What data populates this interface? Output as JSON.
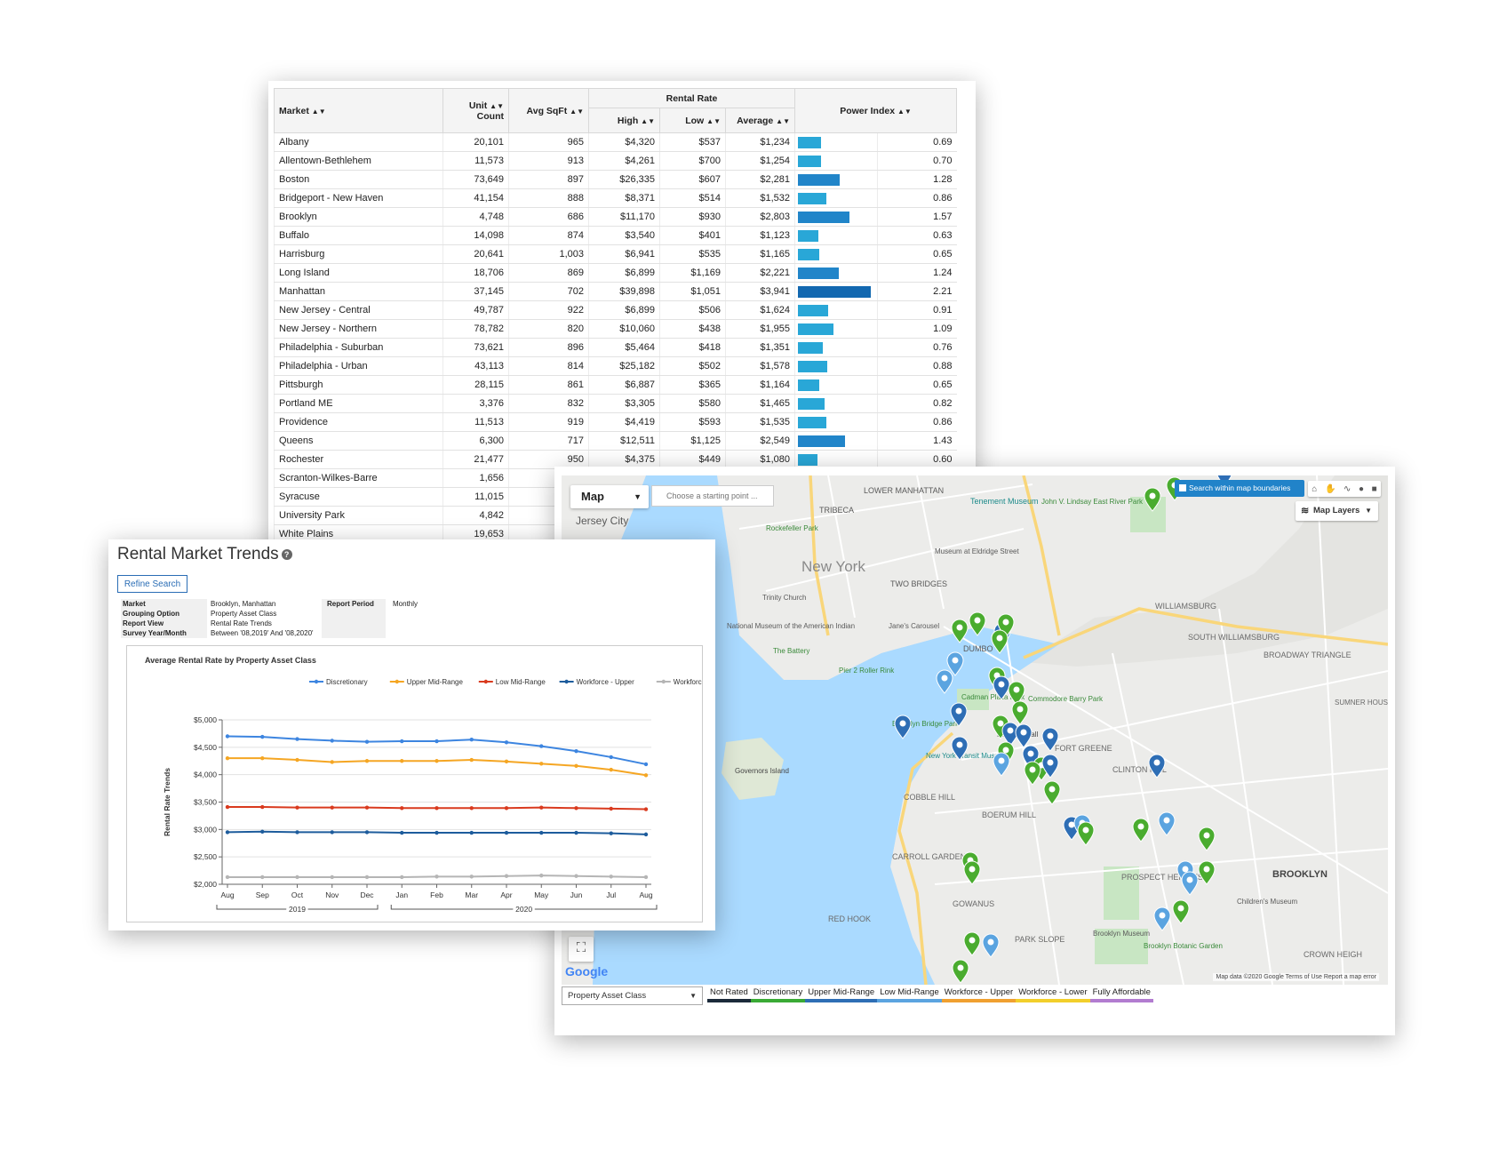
{
  "table": {
    "headers": {
      "market": "Market",
      "unit_count_line1": "Unit",
      "unit_count_line2": "Count",
      "avg_sqft": "Avg SqFt",
      "rental_rate": "Rental Rate",
      "high": "High",
      "low": "Low",
      "average": "Average",
      "power_index": "Power Index"
    },
    "rows": [
      {
        "market": "Albany",
        "unit_count": "20,101",
        "avg_sqft": "965",
        "high": "$4,320",
        "low": "$537",
        "average": "$1,234",
        "power_index": 0.69
      },
      {
        "market": "Allentown-Bethlehem",
        "unit_count": "11,573",
        "avg_sqft": "913",
        "high": "$4,261",
        "low": "$700",
        "average": "$1,254",
        "power_index": 0.7
      },
      {
        "market": "Boston",
        "unit_count": "73,649",
        "avg_sqft": "897",
        "high": "$26,335",
        "low": "$607",
        "average": "$2,281",
        "power_index": 1.28
      },
      {
        "market": "Bridgeport - New Haven",
        "unit_count": "41,154",
        "avg_sqft": "888",
        "high": "$8,371",
        "low": "$514",
        "average": "$1,532",
        "power_index": 0.86
      },
      {
        "market": "Brooklyn",
        "unit_count": "4,748",
        "avg_sqft": "686",
        "high": "$11,170",
        "low": "$930",
        "average": "$2,803",
        "power_index": 1.57
      },
      {
        "market": "Buffalo",
        "unit_count": "14,098",
        "avg_sqft": "874",
        "high": "$3,540",
        "low": "$401",
        "average": "$1,123",
        "power_index": 0.63
      },
      {
        "market": "Harrisburg",
        "unit_count": "20,641",
        "avg_sqft": "1,003",
        "high": "$6,941",
        "low": "$535",
        "average": "$1,165",
        "power_index": 0.65
      },
      {
        "market": "Long Island",
        "unit_count": "18,706",
        "avg_sqft": "869",
        "high": "$6,899",
        "low": "$1,169",
        "average": "$2,221",
        "power_index": 1.24
      },
      {
        "market": "Manhattan",
        "unit_count": "37,145",
        "avg_sqft": "702",
        "high": "$39,898",
        "low": "$1,051",
        "average": "$3,941",
        "power_index": 2.21
      },
      {
        "market": "New Jersey - Central",
        "unit_count": "49,787",
        "avg_sqft": "922",
        "high": "$6,899",
        "low": "$506",
        "average": "$1,624",
        "power_index": 0.91
      },
      {
        "market": "New Jersey - Northern",
        "unit_count": "78,782",
        "avg_sqft": "820",
        "high": "$10,060",
        "low": "$438",
        "average": "$1,955",
        "power_index": 1.09
      },
      {
        "market": "Philadelphia - Suburban",
        "unit_count": "73,621",
        "avg_sqft": "896",
        "high": "$5,464",
        "low": "$418",
        "average": "$1,351",
        "power_index": 0.76
      },
      {
        "market": "Philadelphia - Urban",
        "unit_count": "43,113",
        "avg_sqft": "814",
        "high": "$25,182",
        "low": "$502",
        "average": "$1,578",
        "power_index": 0.88
      },
      {
        "market": "Pittsburgh",
        "unit_count": "28,115",
        "avg_sqft": "861",
        "high": "$6,887",
        "low": "$365",
        "average": "$1,164",
        "power_index": 0.65
      },
      {
        "market": "Portland ME",
        "unit_count": "3,376",
        "avg_sqft": "832",
        "high": "$3,305",
        "low": "$580",
        "average": "$1,465",
        "power_index": 0.82
      },
      {
        "market": "Providence",
        "unit_count": "11,513",
        "avg_sqft": "919",
        "high": "$4,419",
        "low": "$593",
        "average": "$1,535",
        "power_index": 0.86
      },
      {
        "market": "Queens",
        "unit_count": "6,300",
        "avg_sqft": "717",
        "high": "$12,511",
        "low": "$1,125",
        "average": "$2,549",
        "power_index": 1.43
      },
      {
        "market": "Rochester",
        "unit_count": "21,477",
        "avg_sqft": "950",
        "high": "$4,375",
        "low": "$449",
        "average": "$1,080",
        "power_index": 0.6
      },
      {
        "market": "Scranton-Wilkes-Barre",
        "unit_count": "1,656",
        "avg_sqft": "",
        "high": "",
        "low": "",
        "average": "",
        "power_index": null
      },
      {
        "market": "Syracuse",
        "unit_count": "11,015",
        "avg_sqft": "",
        "high": "",
        "low": "",
        "average": "",
        "power_index": null
      },
      {
        "market": "University Park",
        "unit_count": "4,842",
        "avg_sqft": "",
        "high": "",
        "low": "",
        "average": "",
        "power_index": null
      },
      {
        "market": "White Plains",
        "unit_count": "19,653",
        "avg_sqft": "",
        "high": "",
        "low": "",
        "average": "",
        "power_index": null
      }
    ]
  },
  "trends": {
    "title": "Rental Market Trends",
    "help_icon": "question-circle-icon",
    "refine_button": "Refine Search",
    "meta": [
      {
        "label": "Market",
        "value": "Brooklyn, Manhattan"
      },
      {
        "label": "Grouping Option",
        "value": "Property Asset Class"
      },
      {
        "label": "Report View",
        "value": "Rental Rate Trends"
      },
      {
        "label": "Survey Year/Month",
        "value": "Between '08,2019' And '08,2020'"
      }
    ],
    "report_period_label": "Report Period",
    "report_period_value": "Monthly"
  },
  "chart_data": {
    "type": "line",
    "title": "Average Rental Rate by Property Asset Class",
    "ylabel": "Rental Rate Trends",
    "xlabel": "",
    "categories": [
      "Aug",
      "Sep",
      "Oct",
      "Nov",
      "Dec",
      "Jan",
      "Feb",
      "Mar",
      "Apr",
      "May",
      "Jun",
      "Jul",
      "Aug"
    ],
    "year_groups": [
      {
        "label": "2019"
      },
      {
        "label": "2020"
      }
    ],
    "yticks": [
      "$5,000",
      "$4,500",
      "$4,000",
      "$3,500",
      "$3,000",
      "$2,500",
      "$2,000"
    ],
    "ylim": [
      2000,
      5000
    ],
    "legend_position": "top",
    "series": [
      {
        "name": "Discretionary",
        "color": "#3d85e0",
        "values": [
          4700,
          4690,
          4650,
          4620,
          4600,
          4610,
          4610,
          4640,
          4590,
          4520,
          4430,
          4320,
          4190
        ]
      },
      {
        "name": "Upper Mid-Range",
        "color": "#f5a623",
        "values": [
          4300,
          4300,
          4270,
          4230,
          4250,
          4250,
          4250,
          4270,
          4240,
          4200,
          4160,
          4090,
          3990
        ]
      },
      {
        "name": "Low Mid-Range",
        "color": "#d93a1e",
        "values": [
          3410,
          3410,
          3400,
          3400,
          3400,
          3390,
          3390,
          3390,
          3390,
          3400,
          3390,
          3380,
          3370
        ]
      },
      {
        "name": "Workforce - Upper",
        "color": "#1d5c9c",
        "values": [
          2950,
          2960,
          2950,
          2950,
          2950,
          2940,
          2940,
          2940,
          2940,
          2940,
          2940,
          2930,
          2910
        ]
      },
      {
        "name": "Workforce - Lower",
        "color": "#b5b5b5",
        "values": [
          2130,
          2130,
          2130,
          2130,
          2130,
          2130,
          2140,
          2140,
          2150,
          2160,
          2150,
          2140,
          2130
        ]
      }
    ]
  },
  "map": {
    "type_select": "Map",
    "start_placeholder": "Choose a starting point ...",
    "search_bounds_label": "Search within map boundaries",
    "layers_label": "Map Layers",
    "zoom_out": "−",
    "fullscreen_icon": "fullscreen-icon",
    "google_logo": "Google",
    "attribution": "Map data ©2020 Google   Terms of Use   Report a map error",
    "asset_select": "Property Asset Class",
    "place_labels": [
      "Jersey City",
      "TRIBECA",
      "New York",
      "LOWER MANHATTAN",
      "TWO BRIDGES",
      "Tenement Museum",
      "John V. Lindsay East River Park",
      "Rockefeller Park",
      "Trinity Church",
      "National Museum of the American Indian",
      "The Battery",
      "Pier 2 Roller Rink",
      "Museum at Eldridge Street",
      "Jane's Carousel",
      "DUMBO",
      "WILLIAMSBURG",
      "SOUTH WILLIAMSBURG",
      "BROADWAY TRIANGLE",
      "Cadman Plaza Park",
      "Commodore Barry Park",
      "Brooklyn Bridge Park",
      "New York Transit Museum",
      "FORT GREENE",
      "CLINTON HILL",
      "Governors Island",
      "COBBLE HILL",
      "BOERUM HILL",
      "CARROLL GARDENS",
      "PROSPECT HEIGHTS",
      "BROOKLYN",
      "GOWANUS",
      "RED HOOK",
      "PARK SLOPE",
      "Brooklyn Museum",
      "Children's Museum",
      "Brooklyn Botanic Garden",
      "CROWN HEIGH",
      "SUMNER HOUSES",
      "Borough Hall"
    ],
    "legend": [
      {
        "label": "Not Rated",
        "color": "#1b2a3a"
      },
      {
        "label": "Discretionary",
        "color": "#3aaa35"
      },
      {
        "label": "Upper Mid-Range",
        "color": "#2e6eb5"
      },
      {
        "label": "Low Mid-Range",
        "color": "#5ba4e0"
      },
      {
        "label": "Workforce - Upper",
        "color": "#f0a030"
      },
      {
        "label": "Workforce - Lower",
        "color": "#f2cf2b"
      },
      {
        "label": "Fully Affordable",
        "color": "#b27cd0"
      }
    ]
  }
}
